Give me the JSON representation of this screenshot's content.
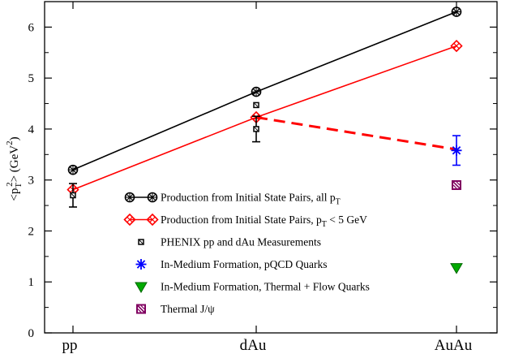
{
  "chart_data": {
    "type": "line",
    "title": "",
    "xlabel": "",
    "ylabel": "<p_T^2> (GeV^2)",
    "ylabel_parts": {
      "open": "<p",
      "sub": "T",
      "sup": "2",
      "mid": "> (GeV",
      "sup2": "2",
      "close": ")"
    },
    "ylim": [
      0,
      6.5
    ],
    "yticks": [
      0,
      1,
      2,
      3,
      4,
      5,
      6
    ],
    "categories": [
      "pp",
      "dAu",
      "AuAu"
    ],
    "grid": false,
    "legend_position": "center-right",
    "series": [
      {
        "name": "Production from Initial State Pairs, all pT",
        "legend": {
          "text": "Production from Initial State Pairs, all p",
          "sub": "T",
          "tail": ""
        },
        "color": "#000000",
        "marker": "circle-x",
        "line": "solid",
        "points": [
          {
            "x": "pp",
            "y": 3.2
          },
          {
            "x": "dAu",
            "y": 4.73
          },
          {
            "x": "AuAu",
            "y": 6.3
          }
        ]
      },
      {
        "name": "Production from Initial State Pairs, pT < 5 GeV",
        "legend": {
          "text": "Production from Initial State Pairs, p",
          "sub": "T",
          "tail": " < 5 GeV"
        },
        "color": "#ff0000",
        "marker": "diamond-x",
        "line": "solid",
        "points": [
          {
            "x": "pp",
            "y": 2.81
          },
          {
            "x": "dAu",
            "y": 4.23
          },
          {
            "x": "AuAu",
            "y": 5.63
          }
        ]
      },
      {
        "name": "PHENIX pp and dAu Measurements",
        "legend": {
          "text": "PHENIX pp and dAu Measurements",
          "sub": "",
          "tail": ""
        },
        "color": "#000000",
        "marker": "small-square",
        "line": "none",
        "points": [
          {
            "x": "pp",
            "y": 2.7,
            "err_low": 2.47,
            "err_high": 2.93
          },
          {
            "x": "dAu",
            "y": 4.0,
            "err_low": 3.75,
            "err_high": 4.25
          },
          {
            "x": "dAu",
            "y": 4.47,
            "err_low": null,
            "err_high": null
          }
        ]
      },
      {
        "name": "In-Medium Formation, pQCD Quarks",
        "legend": {
          "text": "In-Medium Formation, pQCD Quarks",
          "sub": "",
          "tail": ""
        },
        "color": "#0000ff",
        "marker": "asterisk",
        "line": "none",
        "points": [
          {
            "x": "AuAu",
            "y": 3.58,
            "err_low": 3.29,
            "err_high": 3.87
          }
        ]
      },
      {
        "name": "In-Medium Formation, Thermal + Flow Quarks",
        "legend": {
          "text": "In-Medium Formation, Thermal + Flow Quarks",
          "sub": "",
          "tail": ""
        },
        "color": "#00aa00",
        "marker": "triangle-down",
        "line": "none",
        "points": [
          {
            "x": "AuAu",
            "y": 1.28
          }
        ]
      },
      {
        "name": "Thermal J/psi",
        "legend": {
          "text": "Thermal J/ψ",
          "sub": "",
          "tail": ""
        },
        "color": "#800060",
        "marker": "hatched-square",
        "line": "none",
        "points": [
          {
            "x": "AuAu",
            "y": 2.9
          }
        ]
      }
    ],
    "annotations": [
      {
        "type": "dashed-line",
        "color": "#ff0000",
        "from": {
          "x": "dAu",
          "y": 4.23
        },
        "to": {
          "x": "AuAu",
          "y": 3.6
        }
      }
    ]
  }
}
